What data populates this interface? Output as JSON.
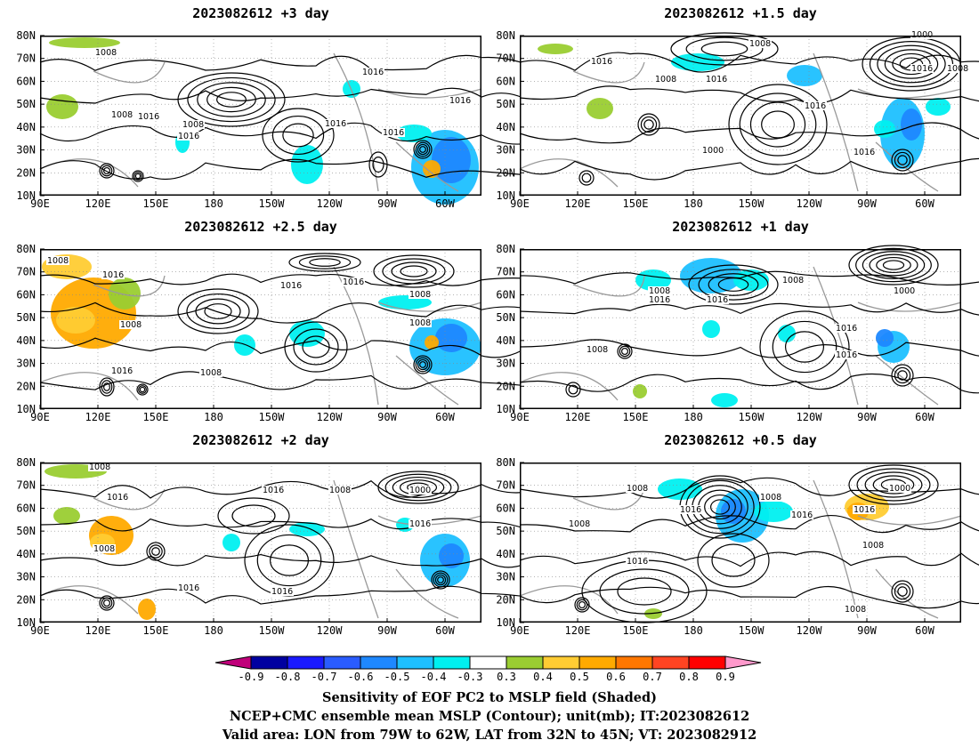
{
  "panels": [
    {
      "title": "2023082612 +3 day",
      "contour_labels": [
        "1008",
        "1008",
        "1016",
        "1008",
        "1016",
        "1016",
        "1016",
        "1016",
        "1016"
      ]
    },
    {
      "title": "2023082612 +1.5 day",
      "contour_labels": [
        "1008",
        "1000",
        "1016",
        "1008",
        "1016",
        "1016",
        "1016",
        "1000",
        "1016",
        "1008"
      ]
    },
    {
      "title": "2023082612 +2.5 day",
      "contour_labels": [
        "1008",
        "1016",
        "1016",
        "1008",
        "1008",
        "1016",
        "1016",
        "1008",
        "1008"
      ]
    },
    {
      "title": "2023082612 +1 day",
      "contour_labels": [
        "1008",
        "1008",
        "1000",
        "1016",
        "1016",
        "1016",
        "1008",
        "1016"
      ]
    },
    {
      "title": "2023082612 +2 day",
      "contour_labels": [
        "1008",
        "1016",
        "1016",
        "1008",
        "1000",
        "1016",
        "1008",
        "1016",
        "1016"
      ]
    },
    {
      "title": "2023082612 +0.5 day",
      "contour_labels": [
        "1008",
        "1008",
        "1000",
        "1016",
        "1016",
        "1016",
        "1008",
        "1016",
        "1008",
        "1008"
      ]
    }
  ],
  "axes": {
    "lat_ticks": [
      "80N",
      "70N",
      "60N",
      "50N",
      "40N",
      "30N",
      "20N",
      "10N"
    ],
    "lon_ticks": [
      "90E",
      "120E",
      "150E",
      "180",
      "150W",
      "120W",
      "90W",
      "60W"
    ]
  },
  "colorbar": {
    "tick_labels": [
      "-0.9",
      "-0.8",
      "-0.7",
      "-0.6",
      "-0.5",
      "-0.4",
      "-0.3",
      "0.3",
      "0.4",
      "0.5",
      "0.6",
      "0.7",
      "0.8",
      "0.9"
    ],
    "colors": [
      "#c0007a",
      "#0000a0",
      "#1a1aff",
      "#2a5cff",
      "#1e88ff",
      "#1ec0ff",
      "#00f0f0",
      "#ffffff",
      "#9acd32",
      "#ffcc33",
      "#ffaa00",
      "#ff7700",
      "#ff4422",
      "#ff0000",
      "#ff99cc"
    ]
  },
  "captions": {
    "line1": "Sensitivity of EOF PC2 to MSLP field (Shaded)",
    "line2": "NCEP+CMC ensemble mean MSLP (Contour); unit(mb); IT:2023082612",
    "line3": "Valid area: LON from 79W to 62W, LAT from 32N to 45N; VT: 2023082912"
  }
}
